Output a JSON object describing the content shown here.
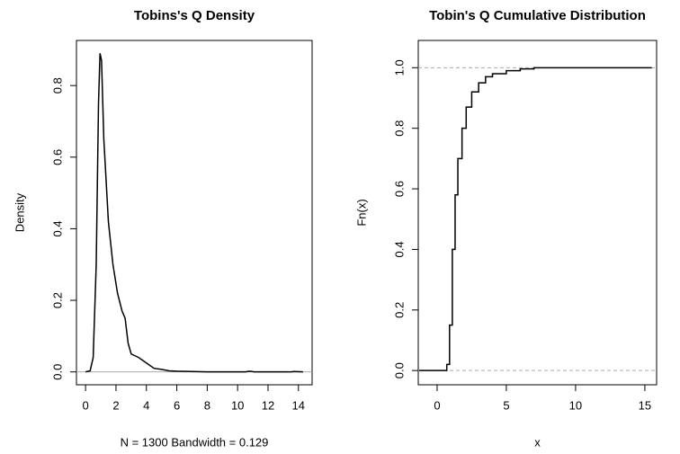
{
  "chart_data": [
    {
      "type": "line",
      "title": "Tobins's Q Density",
      "x_label": "N = 1300   Bandwidth = 0.129",
      "y_label": "Density",
      "x": [
        0,
        0.3,
        0.5,
        0.7,
        0.85,
        0.95,
        1.05,
        1.2,
        1.5,
        1.8,
        2.1,
        2.4,
        2.6,
        2.8,
        3.0,
        3.5,
        4.0,
        4.5,
        5.0,
        5.5,
        6.0,
        7.0,
        8.0,
        10.5,
        10.8,
        11.1,
        13.5,
        13.7,
        14.3
      ],
      "series": [
        {
          "name": "density",
          "color": "#000000",
          "values": [
            0,
            0.003,
            0.04,
            0.3,
            0.75,
            0.89,
            0.87,
            0.65,
            0.42,
            0.3,
            0.22,
            0.17,
            0.15,
            0.08,
            0.05,
            0.04,
            0.025,
            0.01,
            0.007,
            0.003,
            0.002,
            0.001,
            0,
            0,
            0.002,
            0,
            0,
            0.001,
            0
          ]
        }
      ],
      "xlim": [
        -0.6,
        14.9
      ],
      "xticks": [
        0,
        2,
        4,
        6,
        8,
        10,
        12,
        14
      ],
      "ylim": [
        -0.036,
        0.926
      ],
      "yticks": [
        {
          "value": 0,
          "label": "0.0"
        },
        0.2,
        0.4,
        0.6,
        0.8
      ],
      "reference_lines": [
        0
      ],
      "reference_color": "#aaaaaa",
      "reference_dashed": false
    },
    {
      "type": "step",
      "title": "Tobin's Q Cumulative Distribution",
      "x_label": "x",
      "y_label": "Fn(x)",
      "x": [
        -1.3,
        0.5,
        0.7,
        0.9,
        1.1,
        1.3,
        1.5,
        1.8,
        2.1,
        2.5,
        3.0,
        3.5,
        4.0,
        5.0,
        6.0,
        7.0,
        15.5
      ],
      "series": [
        {
          "name": "ecdf",
          "color": "#000000",
          "values": [
            0,
            0,
            0.02,
            0.15,
            0.4,
            0.58,
            0.7,
            0.8,
            0.87,
            0.92,
            0.95,
            0.97,
            0.98,
            0.99,
            0.996,
            1,
            1
          ]
        }
      ],
      "xlim": [
        -1.36,
        15.85
      ],
      "xticks": [
        0,
        5,
        10,
        15
      ],
      "ylim": [
        -0.047,
        1.09
      ],
      "yticks": [
        {
          "value": 0,
          "label": "0.0"
        },
        0.2,
        0.4,
        0.6,
        0.8,
        {
          "value": 1,
          "label": "1.0"
        }
      ],
      "reference_lines": [
        0,
        1
      ],
      "reference_color": "#aaaaaa",
      "reference_dashed": true
    }
  ]
}
